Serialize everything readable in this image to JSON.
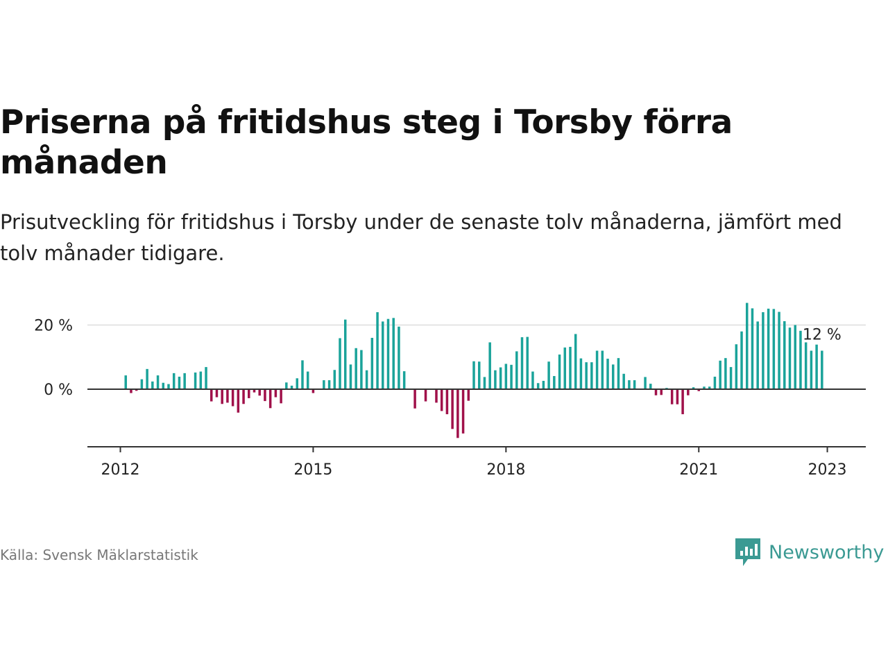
{
  "title": "Priserna på fritidshus steg i Torsby förra månaden",
  "subtitle": "Prisutveckling för fritidshus i Torsby under de senaste tolv månaderna, jämfört med tolv månader tidigare.",
  "source": "Källa: Svensk Mäklarstatistik",
  "brand": "Newsworthy",
  "colors": {
    "positive": "#1aa39a",
    "negative": "#a0114a",
    "brand": "#3b9a93"
  },
  "chart_data": {
    "type": "bar",
    "unit": "%",
    "x_start": "2012-01",
    "y_ticks": [
      {
        "value": 0,
        "label": "0 %"
      },
      {
        "value": 20,
        "label": "20 %"
      }
    ],
    "x_ticks": [
      {
        "date": "2012-01",
        "label": "2012"
      },
      {
        "date": "2015-01",
        "label": "2015"
      },
      {
        "date": "2018-01",
        "label": "2018"
      },
      {
        "date": "2021-01",
        "label": "2021"
      },
      {
        "date": "2023-01",
        "label": "2023"
      }
    ],
    "last_label": "12 %",
    "values": [
      null,
      4.3,
      -1.2,
      -0.5,
      3.1,
      6.3,
      2.4,
      4.3,
      2.0,
      1.6,
      5.0,
      3.9,
      5.0,
      null,
      5.2,
      5.5,
      6.9,
      -3.8,
      -2.5,
      -4.6,
      -4.2,
      -5.3,
      -7.3,
      -4.6,
      -2.8,
      -1.0,
      -2.0,
      -3.7,
      -5.9,
      -2.5,
      -4.4,
      2.1,
      1.1,
      3.4,
      9.0,
      5.5,
      -1.2,
      null,
      2.8,
      2.8,
      6.0,
      15.9,
      21.7,
      7.7,
      12.8,
      12.2,
      5.9,
      16.0,
      24.0,
      21.1,
      21.9,
      22.2,
      19.5,
      5.6,
      null,
      -6.0,
      null,
      -3.8,
      null,
      -4.2,
      -6.8,
      -7.8,
      -12.4,
      -15.2,
      -13.8,
      -3.6,
      8.7,
      8.6,
      3.8,
      14.6,
      5.9,
      6.8,
      7.9,
      7.6,
      11.8,
      16.2,
      16.3,
      5.5,
      1.9,
      2.6,
      8.6,
      4.1,
      10.8,
      13.0,
      13.2,
      17.2,
      9.6,
      8.4,
      8.4,
      12.0,
      12.0,
      9.5,
      7.7,
      9.7,
      4.8,
      2.8,
      2.8,
      null,
      3.8,
      1.7,
      -1.9,
      -1.8,
      0.4,
      -4.7,
      -4.7,
      -7.8,
      -1.9,
      0.6,
      -0.6,
      0.8,
      0.8,
      3.9,
      8.9,
      9.7,
      6.9,
      14.0,
      18.0,
      26.9,
      25.2,
      21.1,
      24.0,
      25.1,
      25.0,
      24.1,
      21.2,
      19.2,
      20.0,
      18.2,
      14.6,
      12.0,
      13.9,
      12.0
    ]
  }
}
